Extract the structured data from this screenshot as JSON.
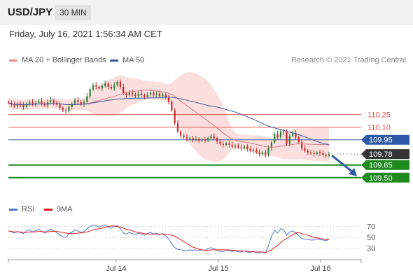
{
  "header": {
    "symbol": "USD/JPY",
    "timeframe": "30 MIN"
  },
  "datetime": "Friday, July 16, 2021 1:56:34 AM CET",
  "legend": {
    "ma20": {
      "label": "MA 20 + Bollinger Bands",
      "color": "#f08a8a"
    },
    "ma50": {
      "label": "MA 50",
      "color": "#3a5a9a"
    },
    "rsi": {
      "label": "RSI",
      "color": "#5577cc"
    },
    "ma9": {
      "label": "9MA",
      "color": "#dd2222"
    }
  },
  "copyright": "Research © 2021 Trading Central",
  "colors": {
    "up": "#2e7d32",
    "down": "#c62828",
    "band": "#f9d3d3",
    "resistance": "#e05555",
    "pivot": "#2e5aa8",
    "support": "#1e8a1e",
    "last": "#333333"
  },
  "chart_data": [
    {
      "type": "line",
      "title": "",
      "ylim": [
        109.24,
        110.78
      ],
      "x_ticks": [
        "Jul 14",
        "Jul 15",
        "Jul 16"
      ],
      "levels": [
        {
          "value": 110.25,
          "label": "110.25",
          "kind": "resistance"
        },
        {
          "value": 110.1,
          "label": "110.10",
          "kind": "resistance"
        },
        {
          "value": 109.95,
          "label": "109.95",
          "kind": "pivot"
        },
        {
          "value": 109.78,
          "label": "109.78",
          "kind": "last"
        },
        {
          "value": 109.65,
          "label": "109.65",
          "kind": "support"
        },
        {
          "value": 109.5,
          "label": "109.50",
          "kind": "support"
        }
      ],
      "close": [
        110.39,
        110.37,
        110.35,
        110.38,
        110.36,
        110.34,
        110.38,
        110.4,
        110.37,
        110.39,
        110.41,
        110.38,
        110.36,
        110.4,
        110.42,
        110.39,
        110.37,
        110.33,
        110.3,
        110.29,
        110.34,
        110.38,
        110.42,
        110.4,
        110.37,
        110.4,
        110.47,
        110.55,
        110.6,
        110.58,
        110.56,
        110.59,
        110.62,
        110.58,
        110.56,
        110.6,
        110.64,
        110.58,
        110.5,
        110.48,
        110.51,
        110.49,
        110.47,
        110.5,
        110.48,
        110.46,
        110.49,
        110.51,
        110.48,
        110.5,
        110.47,
        110.49,
        110.45,
        110.4,
        110.3,
        110.15,
        110.05,
        110.0,
        109.98,
        109.96,
        109.97,
        109.95,
        109.96,
        109.94,
        109.95,
        109.94,
        109.97,
        109.99,
        109.97,
        109.93,
        109.9,
        109.89,
        109.91,
        109.89,
        109.87,
        109.88,
        109.86,
        109.85,
        109.87,
        109.84,
        109.82,
        109.83,
        109.8,
        109.78,
        109.8,
        109.77,
        109.85,
        109.92,
        110.02,
        109.98,
        110.05,
        110.04,
        109.9,
        110.0,
        110.03,
        109.98,
        109.92,
        109.85,
        109.82,
        109.8,
        109.79,
        109.78,
        109.8,
        109.79,
        109.77,
        109.76,
        109.78
      ]
    },
    {
      "type": "line",
      "title": "",
      "ylim": [
        10,
        85
      ],
      "y_ticks": [
        70,
        50,
        30
      ],
      "series": [
        {
          "name": "RSI",
          "values": [
            62,
            60,
            58,
            61,
            59,
            57,
            62,
            64,
            60,
            62,
            65,
            61,
            58,
            62,
            65,
            62,
            59,
            54,
            51,
            50,
            56,
            60,
            64,
            62,
            59,
            61,
            66,
            70,
            73,
            71,
            69,
            71,
            73,
            69,
            67,
            70,
            72,
            66,
            58,
            56,
            59,
            57,
            55,
            58,
            56,
            54,
            57,
            59,
            56,
            58,
            55,
            57,
            53,
            47,
            38,
            31,
            28,
            27,
            26,
            25,
            27,
            26,
            27,
            25,
            27,
            26,
            29,
            31,
            29,
            26,
            24,
            24,
            27,
            25,
            24,
            25,
            23,
            23,
            25,
            23,
            22,
            24,
            22,
            21,
            23,
            21,
            35,
            52,
            63,
            58,
            66,
            64,
            54,
            60,
            62,
            58,
            53,
            48,
            47,
            46,
            45,
            45,
            47,
            46,
            45,
            44,
            46
          ]
        },
        {
          "name": "9MA",
          "values": [
            62,
            61,
            60,
            60,
            60,
            59,
            59,
            60,
            60,
            60,
            61,
            61,
            60,
            60,
            61,
            61,
            61,
            60,
            59,
            58,
            57,
            57,
            57,
            58,
            58,
            59,
            60,
            62,
            64,
            65,
            66,
            67,
            69,
            70,
            71,
            71,
            70,
            69,
            67,
            65,
            64,
            62,
            60,
            59,
            58,
            57,
            56,
            56,
            56,
            56,
            56,
            56,
            56,
            55,
            54,
            52,
            49,
            46,
            42,
            39,
            35,
            32,
            30,
            28,
            27,
            26,
            26,
            27,
            27,
            27,
            27,
            27,
            27,
            27,
            26,
            26,
            25,
            25,
            25,
            24,
            24,
            23,
            23,
            23,
            23,
            22,
            24,
            27,
            31,
            35,
            40,
            45,
            48,
            52,
            55,
            58,
            59,
            57,
            55,
            54,
            52,
            50,
            49,
            48,
            47,
            46,
            46
          ]
        }
      ]
    }
  ]
}
